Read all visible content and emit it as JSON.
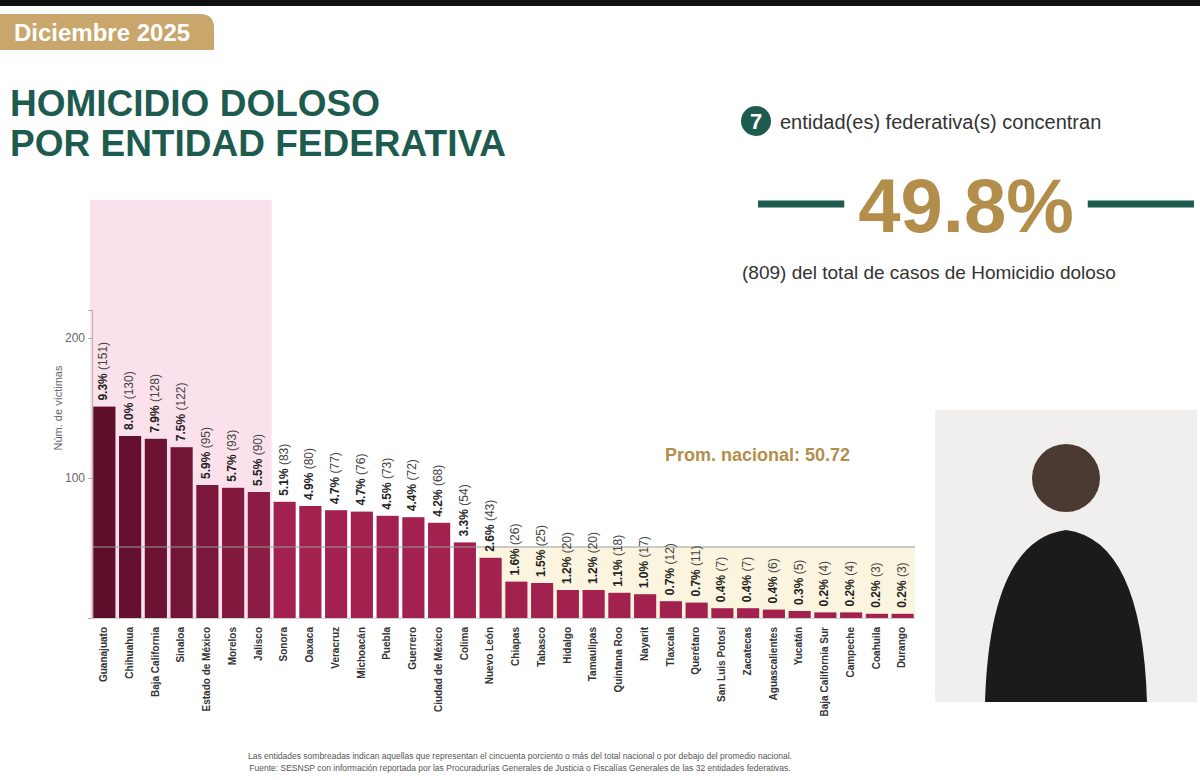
{
  "header": {
    "date": "Diciembre 2025",
    "title": [
      "HOMICIDIO DOLOSO",
      "POR ENTIDAD FEDERATIVA"
    ]
  },
  "summary": {
    "count": 7,
    "count_text": "entidad(es) federativa(s) concentran",
    "share": "49.8%",
    "detail": "(809) del total de casos de Homicidio doloso"
  },
  "chart_data": {
    "type": "bar",
    "y_label": "Núm. de víctimas",
    "categories": [
      "Guanajuato",
      "Chihuahua",
      "Baja California",
      "Sinaloa",
      "Estado de México",
      "Morelos",
      "Jalisco",
      "Sonora",
      "Oaxaca",
      "Veracruz",
      "Michoacán",
      "Puebla",
      "Guerrero",
      "Ciudad de México",
      "Colima",
      "Nuevo León",
      "Chiapas",
      "Tabasco",
      "Hidalgo",
      "Tamaulipas",
      "Quintana Roo",
      "Nayarit",
      "Tlaxcala",
      "Querétaro",
      "San Luis Potosí",
      "Zacatecas",
      "Aguascalientes",
      "Yucatán",
      "Baja California Sur",
      "Campeche",
      "Coahuila",
      "Durango"
    ],
    "values": [
      151,
      130,
      128,
      122,
      95,
      93,
      90,
      83,
      80,
      77,
      76,
      73,
      72,
      68,
      54,
      43,
      26,
      25,
      20,
      20,
      18,
      17,
      12,
      11,
      7,
      7,
      6,
      5,
      4,
      4,
      3,
      3
    ],
    "value_labels": [
      "9.3% (151)",
      "8.0% (130)",
      "7.9% (128)",
      "7.5% (122)",
      "5.9% (95)",
      "5.7% (93)",
      "5.5% (90)",
      "5.1% (83)",
      "4.9% (80)",
      "4.7% (77)",
      "4.7% (76)",
      "4.5% (73)",
      "4.4% (72)",
      "4.2% (68)",
      "3.3% (54)",
      "2.6% (43)",
      "1.6% (26)",
      "1.5% (25)",
      "1.2% (20)",
      "1.2% (20)",
      "1.1% (18)",
      "1.0% (17)",
      "0.7% (12)",
      "0.7% (11)",
      "0.4% (7)",
      "0.4% (7)",
      "0.4% (6)",
      "0.3% (5)",
      "0.2% (4)",
      "0.2% (4)",
      "0.2% (3)",
      "0.2% (3)"
    ],
    "colors": [
      "#5e0d2b",
      "#651030",
      "#6c1233",
      "#731536",
      "#7b173a",
      "#82193e",
      "#8b1c43",
      "#a3214f",
      "#a3214f",
      "#a3214f",
      "#a3214f",
      "#a3214f",
      "#a3214f",
      "#a3214f",
      "#a3214f",
      "#a3214f",
      "#a3214f",
      "#a3214f",
      "#a3214f",
      "#a3214f",
      "#a3214f",
      "#a3214f",
      "#a3214f",
      "#a3214f",
      "#a3214f",
      "#a3214f",
      "#a3214f",
      "#a3214f",
      "#a3214f",
      "#a3214f",
      "#a3214f",
      "#a3214f"
    ],
    "ylim": [
      0,
      220
    ],
    "yticks": [
      100,
      200
    ],
    "grid": false,
    "data_labels": true,
    "annotations": [
      {
        "text": "Prom. nacional: 50.72",
        "value": 50.72
      }
    ]
  },
  "footnotes": [
    "Las entidades sombreadas indican aquellas que representan el cincuenta porciento o más del total nacional o por debajo del promedio nacional.",
    "Fuente: SESNSP con información reportada por las Procuradurías Generales de Justicia o Fiscalías Generales de las 32 entidades federativas."
  ]
}
